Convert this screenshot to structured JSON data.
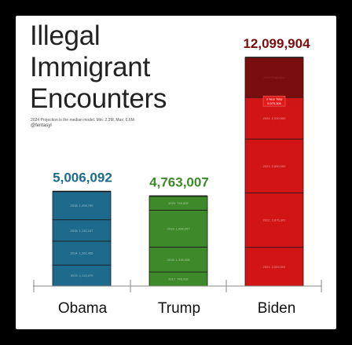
{
  "title_lines": [
    "Illegal",
    "Immigrant",
    "Encounters"
  ],
  "note": "2024 Projection is the median model. Min: 2.3M, Max: 6.6M",
  "handle": "@fentasyl",
  "chart_data": {
    "type": "bar",
    "stacked": true,
    "categories": [
      "Obama",
      "Trump",
      "Biden"
    ],
    "totals": [
      5006092,
      4763007,
      12099904
    ],
    "total_labels": [
      "5,006,092",
      "4,763,007",
      "12,099,904"
    ],
    "colors": {
      "Obama": "#1d6a8c",
      "Trump": "#3e8a2a",
      "Biden": "#d11414",
      "Biden_projection": "#7a0d0d",
      "edge": "#1a1a1a"
    },
    "segments": {
      "Obama": [
        {
          "label": "2013: 1,113,670",
          "value": 1113670
        },
        {
          "label": "2014: 1,261,456",
          "value": 1261456
        },
        {
          "label": "2015: 1,132,167",
          "value": 1132167
        },
        {
          "label": "2016: 1,498,799",
          "value": 1498799
        }
      ],
      "Trump": [
        {
          "label": "2017: 745,092",
          "value": 745092
        },
        {
          "label": "2018: 1,316,026",
          "value": 1316026
        },
        {
          "label": "2019: 1,956,057",
          "value": 1956057
        },
        {
          "label": "2020: 745,832",
          "value": 745832
        }
      ],
      "Biden": [
        {
          "label": "2021: 2,049,004",
          "value": 2049004
        },
        {
          "label": "2022: 2,876,301",
          "value": 2876301
        },
        {
          "label": "2023: 2,850,000",
          "value": 2850000
        },
        {
          "label": "2024: 2,200,000",
          "value": 2200000
        },
        {
          "label": "2024 Projection",
          "value": 2124599,
          "projection": true
        }
      ]
    },
    "callout": {
      "category": "Biden",
      "lines": [
        "3 Year Total",
        "9,975,305"
      ]
    },
    "ylim": [
      0,
      12500000
    ]
  }
}
